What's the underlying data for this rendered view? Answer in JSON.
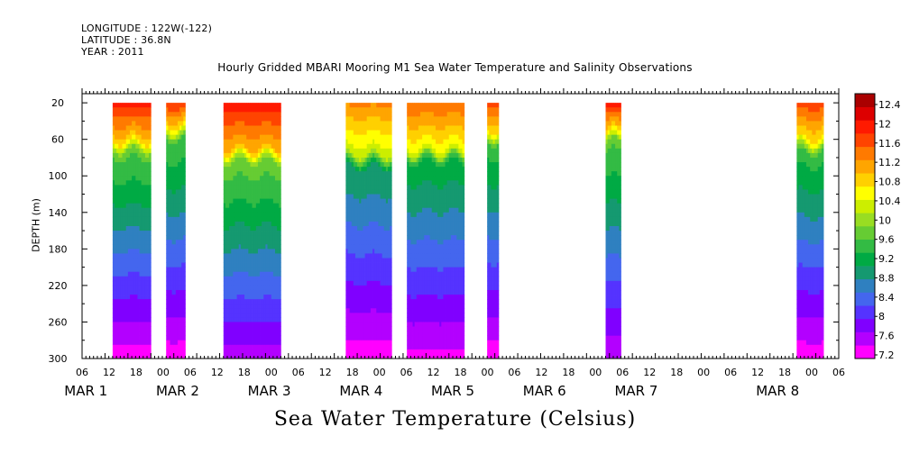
{
  "meta": {
    "longitude": "LONGITUDE : 122W(-122)",
    "latitude": "LATITUDE : 36.8N",
    "year": "YEAR : 2011"
  },
  "chart_data": {
    "type": "heatmap",
    "title": "Hourly Gridded MBARI Mooring M1 Sea Water Temperature and Salinity Observations",
    "colorbar_label": "Sea Water Temperature (Celsius)",
    "ylabel": "DEPTH (m)",
    "ylim": [
      300,
      0
    ],
    "y_ticks": [
      20,
      60,
      100,
      140,
      180,
      220,
      260,
      300
    ],
    "x_tick_hours": [
      "06",
      "12",
      "18",
      "00",
      "06",
      "12",
      "18",
      "00",
      "06",
      "12",
      "18",
      "00",
      "06",
      "12",
      "18",
      "00",
      "06",
      "12",
      "18",
      "00",
      "06",
      "12",
      "18",
      "00",
      "06",
      "12",
      "18",
      "00",
      "06"
    ],
    "x_day_labels": [
      "MAR 1",
      "MAR 2",
      "MAR 3",
      "MAR 4",
      "MAR 5",
      "MAR 6",
      "MAR 7",
      "MAR 8"
    ],
    "colorbar_ticks": [
      "12.4",
      "12",
      "11.6",
      "11.2",
      "10.8",
      "10.4",
      "10",
      "9.6",
      "9.2",
      "8.8",
      "8.4",
      "8",
      "7.6",
      "7.2"
    ],
    "color_levels": [
      "#ff00ff",
      "#b300ff",
      "#8000ff",
      "#5533ff",
      "#4466ee",
      "#2f80c0",
      "#159970",
      "#00aa44",
      "#33bb44",
      "#66cc33",
      "#99dd22",
      "#ccee00",
      "#ffff00",
      "#ffd000",
      "#ffa500",
      "#ff7a00",
      "#ff4400",
      "#ff1a00",
      "#dd0000",
      "#aa0000"
    ],
    "data_blocks": [
      {
        "t_start_h": 14,
        "t_end_h": 24,
        "surface_temp": 11.9,
        "thermocline_depth": 60,
        "bottom_temp": 7.3
      },
      {
        "t_start_h": 28,
        "t_end_h": 33,
        "surface_temp": 11.8,
        "thermocline_depth": 45,
        "bottom_temp": 7.3
      },
      {
        "t_start_h": 43,
        "t_end_h": 58,
        "surface_temp": 12.0,
        "thermocline_depth": 70,
        "bottom_temp": 7.6
      },
      {
        "t_start_h": 75,
        "t_end_h": 87,
        "surface_temp": 11.3,
        "thermocline_depth": 75,
        "bottom_temp": 7.3
      },
      {
        "t_start_h": 91,
        "t_end_h": 106,
        "surface_temp": 11.5,
        "thermocline_depth": 70,
        "bottom_temp": 7.4
      },
      {
        "t_start_h": 112,
        "t_end_h": 115,
        "surface_temp": 11.7,
        "thermocline_depth": 50,
        "bottom_temp": 7.3
      },
      {
        "t_start_h": 143,
        "t_end_h": 147,
        "surface_temp": 11.9,
        "thermocline_depth": 50,
        "bottom_temp": 7.5
      },
      {
        "t_start_h": 193,
        "t_end_h": 200,
        "surface_temp": 11.7,
        "thermocline_depth": 60,
        "bottom_temp": 7.3
      }
    ]
  }
}
